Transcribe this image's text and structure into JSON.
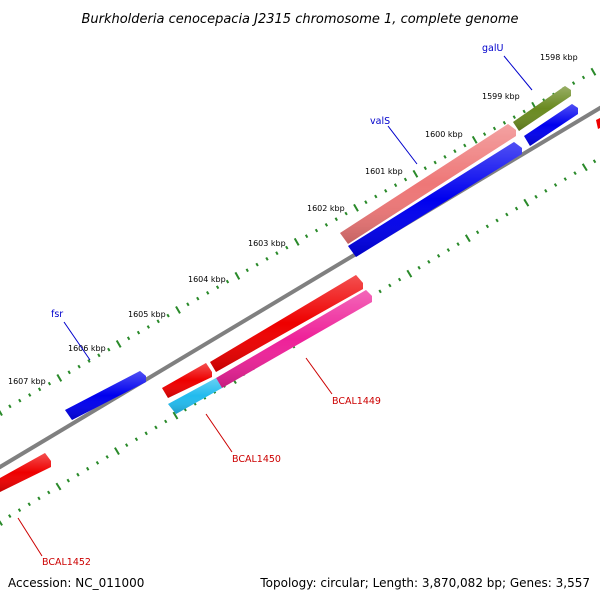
{
  "title": "Burkholderia cenocepacia J2315 chromosome 1, complete genome",
  "footer": {
    "accession": "Accession: NC_011000",
    "summary": "Topology: circular; Length: 3,870,082 bp; Genes: 3,557"
  },
  "ticks": [
    {
      "label": "1598 kbp"
    },
    {
      "label": "1599 kbp"
    },
    {
      "label": "1600 kbp"
    },
    {
      "label": "1601 kbp"
    },
    {
      "label": "1602 kbp"
    },
    {
      "label": "1603 kbp"
    },
    {
      "label": "1604 kbp"
    },
    {
      "label": "1605 kbp"
    },
    {
      "label": "1606 kbp"
    },
    {
      "label": "1607 kbp"
    }
  ],
  "gene_labels": [
    {
      "name": "galU",
      "strand": "forward"
    },
    {
      "name": "valS",
      "strand": "forward"
    },
    {
      "name": "fsr",
      "strand": "forward"
    },
    {
      "name": "BCAL1449",
      "strand": "reverse"
    },
    {
      "name": "BCAL1450",
      "strand": "reverse"
    },
    {
      "name": "BCAL1452",
      "strand": "reverse"
    }
  ],
  "colors": {
    "backbone": "#808080",
    "tick": "#2a8a2a",
    "forward_gene": "#0000ee",
    "forward_label": "#0000cc",
    "reverse_label": "#cc0000",
    "cog_red": "#ee0000",
    "cog_pink": "#ee7777",
    "cog_olive": "#6a8a20",
    "cog_magenta": "#ee2299",
    "cog_cyan": "#22bbee"
  }
}
